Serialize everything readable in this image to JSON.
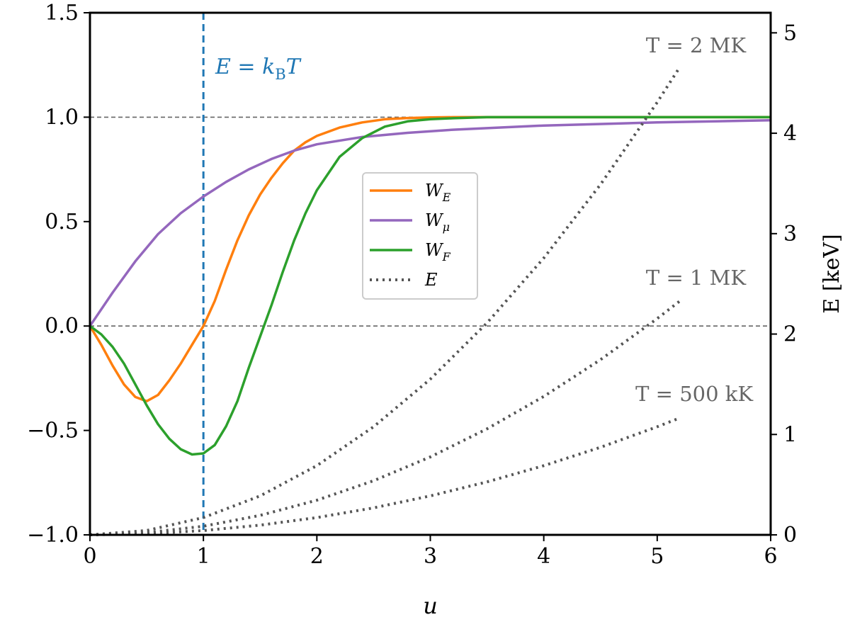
{
  "chart_data": {
    "type": "line",
    "xlabel": "u",
    "ylabel_left": "",
    "ylabel_right": "E [keV]",
    "xlim": [
      0,
      6
    ],
    "ylim_left": [
      -1.0,
      1.5
    ],
    "ylim_right": [
      0,
      5.2
    ],
    "xticks": [
      "0",
      "1",
      "2",
      "3",
      "4",
      "5",
      "6"
    ],
    "yticks_left": [
      "−1.0",
      "−0.5",
      "0.0",
      "0.5",
      "1.0",
      "1.5"
    ],
    "yticks_left_values": [
      -1.0,
      -0.5,
      0.0,
      0.5,
      1.0,
      1.5
    ],
    "yticks_right": [
      "0",
      "1",
      "2",
      "3",
      "4",
      "5"
    ],
    "yticks_right_values": [
      0,
      1,
      2,
      3,
      4,
      5
    ],
    "hlines": [
      0.0,
      1.0
    ],
    "vline": {
      "x": 1.0,
      "label": "E = kBT",
      "label_main": "E = k",
      "label_sub": "B",
      "label_end": "T",
      "color": "#1f77b4"
    },
    "series": [
      {
        "name": "W_E",
        "name_main": "W",
        "name_sub": "E",
        "axis": "left",
        "color": "#ff7f0e",
        "style": "solid",
        "x": [
          0,
          0.1,
          0.2,
          0.3,
          0.4,
          0.5,
          0.6,
          0.7,
          0.8,
          0.9,
          1.0,
          1.1,
          1.2,
          1.3,
          1.4,
          1.5,
          1.6,
          1.7,
          1.8,
          1.9,
          2.0,
          2.2,
          2.4,
          2.6,
          2.8,
          3.0,
          3.2,
          3.5,
          4.0,
          5.0,
          6.0
        ],
        "y": [
          0,
          -0.09,
          -0.19,
          -0.28,
          -0.34,
          -0.36,
          -0.33,
          -0.26,
          -0.18,
          -0.09,
          0.0,
          0.12,
          0.27,
          0.41,
          0.53,
          0.63,
          0.71,
          0.78,
          0.84,
          0.88,
          0.91,
          0.95,
          0.975,
          0.99,
          0.996,
          0.999,
          1.0,
          1.0,
          1.0,
          1.0,
          1.0
        ]
      },
      {
        "name": "W_μ",
        "name_main": "W",
        "name_sub": "μ",
        "axis": "left",
        "color": "#9467bd",
        "style": "solid",
        "x": [
          0,
          0.2,
          0.4,
          0.6,
          0.8,
          1.0,
          1.2,
          1.4,
          1.6,
          1.8,
          2.0,
          2.4,
          2.8,
          3.2,
          3.6,
          4.0,
          5.0,
          6.0
        ],
        "y": [
          0,
          0.16,
          0.31,
          0.44,
          0.54,
          0.62,
          0.69,
          0.75,
          0.8,
          0.84,
          0.87,
          0.905,
          0.925,
          0.94,
          0.95,
          0.96,
          0.975,
          0.985
        ]
      },
      {
        "name": "W_F",
        "name_main": "W",
        "name_sub": "F",
        "axis": "left",
        "color": "#2ca02c",
        "style": "solid",
        "x": [
          0,
          0.1,
          0.2,
          0.3,
          0.4,
          0.5,
          0.6,
          0.7,
          0.8,
          0.9,
          1.0,
          1.1,
          1.2,
          1.3,
          1.4,
          1.5,
          1.6,
          1.7,
          1.8,
          1.9,
          2.0,
          2.2,
          2.4,
          2.6,
          2.8,
          3.0,
          3.2,
          3.5,
          4.0,
          5.0,
          6.0
        ],
        "y": [
          0,
          -0.04,
          -0.1,
          -0.18,
          -0.28,
          -0.38,
          -0.47,
          -0.54,
          -0.59,
          -0.615,
          -0.61,
          -0.57,
          -0.48,
          -0.36,
          -0.2,
          -0.05,
          0.1,
          0.26,
          0.41,
          0.54,
          0.65,
          0.81,
          0.9,
          0.955,
          0.98,
          0.99,
          0.995,
          1.0,
          1.0,
          1.0,
          1.0
        ]
      },
      {
        "name": "E",
        "name_main": "E",
        "name_sub": "",
        "axis": "right",
        "color": "#555555",
        "style": "dotted",
        "curves": [
          {
            "label": "T = 2 MK",
            "x": [
              0,
              0.5,
              1,
              1.5,
              2,
              2.5,
              3,
              3.5,
              4,
              4.5,
              5,
              5.2
            ],
            "y": [
              0,
              0.043,
              0.172,
              0.388,
              0.689,
              1.077,
              1.551,
              2.111,
              2.757,
              3.49,
              4.308,
              4.66
            ]
          },
          {
            "label": "T = 1 MK",
            "x": [
              0,
              0.5,
              1,
              1.5,
              2,
              2.5,
              3,
              3.5,
              4,
              4.5,
              5,
              5.2
            ],
            "y": [
              0,
              0.022,
              0.086,
              0.194,
              0.345,
              0.539,
              0.776,
              1.056,
              1.379,
              1.745,
              2.154,
              2.33
            ]
          },
          {
            "label": "T = 500 kK",
            "x": [
              0,
              0.5,
              1,
              1.5,
              2,
              2.5,
              3,
              3.5,
              4,
              4.5,
              5,
              5.2
            ],
            "y": [
              0,
              0.011,
              0.043,
              0.097,
              0.172,
              0.269,
              0.388,
              0.528,
              0.689,
              0.872,
              1.077,
              1.165
            ]
          }
        ]
      }
    ],
    "legend_position": "center"
  }
}
